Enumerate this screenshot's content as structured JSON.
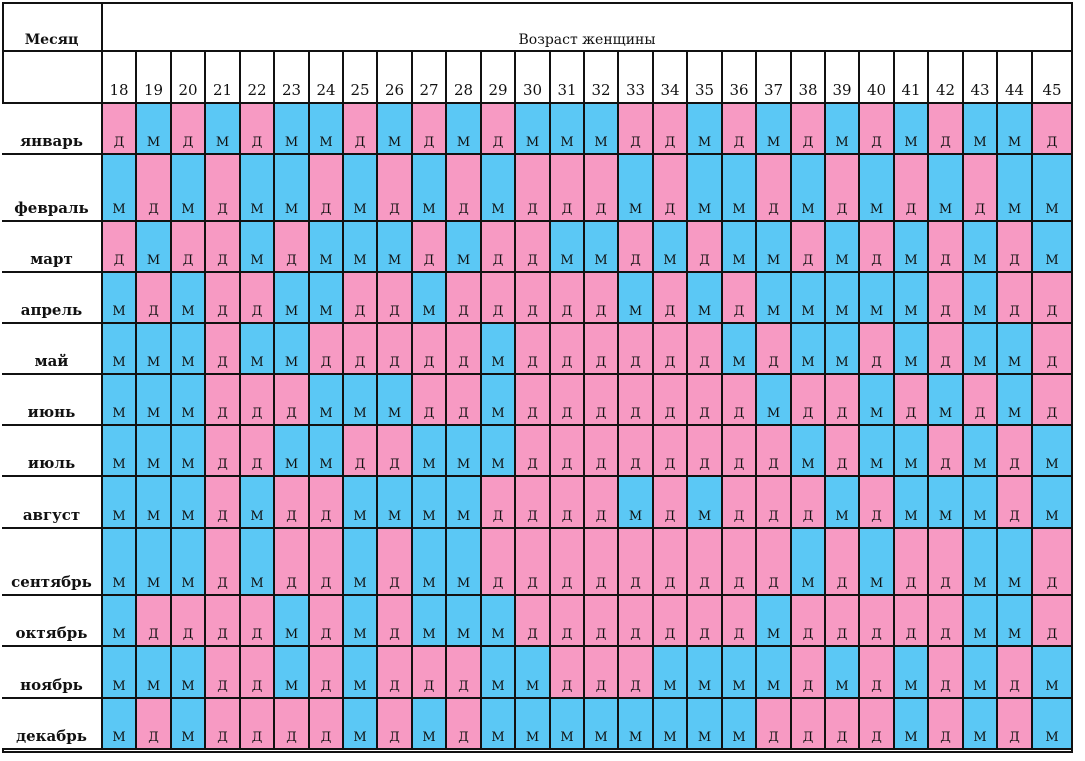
{
  "header": {
    "month_header": "Месяц",
    "age_header": "Возраст женщины"
  },
  "ages": [
    "18",
    "19",
    "20",
    "21",
    "22",
    "23",
    "24",
    "25",
    "26",
    "27",
    "28",
    "29",
    "30",
    "31",
    "32",
    "33",
    "34",
    "35",
    "36",
    "37",
    "38",
    "39",
    "40",
    "41",
    "42",
    "43",
    "44",
    "45"
  ],
  "legend": {
    "boy": "М",
    "girl": "Д"
  },
  "colors": {
    "boy": "#5bc8f5",
    "girl": "#f79ac3",
    "grid": "#111111"
  },
  "rows": [
    {
      "month": "январь",
      "values": [
        "Д",
        "М",
        "Д",
        "М",
        "Д",
        "М",
        "М",
        "Д",
        "М",
        "Д",
        "М",
        "Д",
        "М",
        "М",
        "М",
        "Д",
        "Д",
        "М",
        "Д",
        "М",
        "Д",
        "М",
        "Д",
        "М",
        "Д",
        "М",
        "М",
        "Д"
      ]
    },
    {
      "month": "февраль",
      "values": [
        "М",
        "Д",
        "М",
        "Д",
        "М",
        "М",
        "Д",
        "М",
        "Д",
        "М",
        "Д",
        "М",
        "Д",
        "Д",
        "Д",
        "М",
        "Д",
        "М",
        "М",
        "Д",
        "М",
        "Д",
        "М",
        "Д",
        "М",
        "Д",
        "М",
        "М"
      ]
    },
    {
      "month": "март",
      "values": [
        "Д",
        "М",
        "Д",
        "Д",
        "М",
        "Д",
        "М",
        "М",
        "М",
        "Д",
        "М",
        "Д",
        "Д",
        "М",
        "М",
        "Д",
        "М",
        "Д",
        "М",
        "М",
        "Д",
        "М",
        "Д",
        "М",
        "Д",
        "М",
        "Д",
        "М"
      ]
    },
    {
      "month": "апрель",
      "values": [
        "М",
        "Д",
        "М",
        "Д",
        "Д",
        "М",
        "М",
        "Д",
        "Д",
        "М",
        "Д",
        "Д",
        "Д",
        "Д",
        "Д",
        "М",
        "Д",
        "М",
        "Д",
        "М",
        "М",
        "М",
        "М",
        "М",
        "Д",
        "М",
        "Д",
        "Д"
      ]
    },
    {
      "month": "май",
      "values": [
        "М",
        "М",
        "М",
        "Д",
        "М",
        "М",
        "Д",
        "Д",
        "Д",
        "Д",
        "Д",
        "М",
        "Д",
        "Д",
        "Д",
        "Д",
        "Д",
        "Д",
        "М",
        "Д",
        "М",
        "М",
        "Д",
        "М",
        "Д",
        "М",
        "М",
        "Д"
      ]
    },
    {
      "month": "июнь",
      "values": [
        "М",
        "М",
        "М",
        "Д",
        "Д",
        "Д",
        "М",
        "М",
        "М",
        "Д",
        "Д",
        "М",
        "Д",
        "Д",
        "Д",
        "Д",
        "Д",
        "Д",
        "Д",
        "М",
        "Д",
        "Д",
        "М",
        "Д",
        "М",
        "Д",
        "М",
        "Д"
      ]
    },
    {
      "month": "июль",
      "values": [
        "М",
        "М",
        "М",
        "Д",
        "Д",
        "М",
        "М",
        "Д",
        "Д",
        "М",
        "М",
        "М",
        "Д",
        "Д",
        "Д",
        "Д",
        "Д",
        "Д",
        "Д",
        "Д",
        "М",
        "Д",
        "М",
        "М",
        "Д",
        "М",
        "Д",
        "М"
      ]
    },
    {
      "month": "август",
      "values": [
        "М",
        "М",
        "М",
        "Д",
        "М",
        "Д",
        "Д",
        "М",
        "М",
        "М",
        "М",
        "Д",
        "Д",
        "Д",
        "Д",
        "М",
        "Д",
        "М",
        "Д",
        "Д",
        "Д",
        "М",
        "Д",
        "М",
        "М",
        "М",
        "Д",
        "М"
      ]
    },
    {
      "month": "сентябрь",
      "values": [
        "М",
        "М",
        "М",
        "Д",
        "М",
        "Д",
        "Д",
        "М",
        "Д",
        "М",
        "М",
        "Д",
        "Д",
        "Д",
        "Д",
        "Д",
        "Д",
        "Д",
        "Д",
        "Д",
        "М",
        "Д",
        "М",
        "Д",
        "Д",
        "М",
        "М",
        "Д"
      ]
    },
    {
      "month": "октябрь",
      "values": [
        "М",
        "Д",
        "Д",
        "Д",
        "Д",
        "М",
        "Д",
        "М",
        "Д",
        "М",
        "М",
        "М",
        "Д",
        "Д",
        "Д",
        "Д",
        "Д",
        "Д",
        "Д",
        "М",
        "Д",
        "Д",
        "Д",
        "Д",
        "Д",
        "М",
        "М",
        "Д"
      ]
    },
    {
      "month": "ноябрь",
      "values": [
        "М",
        "М",
        "М",
        "Д",
        "Д",
        "М",
        "Д",
        "М",
        "Д",
        "Д",
        "Д",
        "М",
        "М",
        "Д",
        "Д",
        "Д",
        "М",
        "М",
        "М",
        "М",
        "Д",
        "М",
        "Д",
        "М",
        "Д",
        "М",
        "Д",
        "М"
      ]
    },
    {
      "month": "декабрь",
      "values": [
        "М",
        "Д",
        "М",
        "Д",
        "Д",
        "Д",
        "Д",
        "М",
        "Д",
        "М",
        "Д",
        "М",
        "М",
        "М",
        "М",
        "М",
        "М",
        "М",
        "М",
        "Д",
        "Д",
        "Д",
        "Д",
        "М",
        "Д",
        "М",
        "Д",
        "М"
      ]
    }
  ]
}
